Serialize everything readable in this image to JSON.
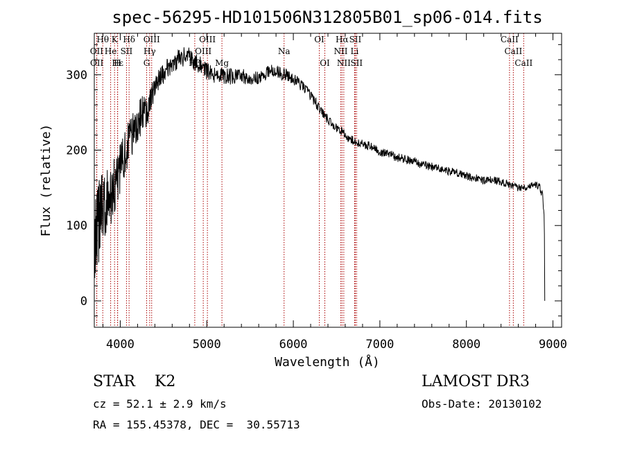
{
  "chart_data": {
    "type": "line",
    "title": "spec-56295-HD101506N312805B01_sp06-014.fits",
    "xlabel": "Wavelength (Å)",
    "ylabel": "Flux (relative)",
    "xlim": [
      3700,
      9100
    ],
    "ylim": [
      -35,
      355
    ],
    "xticks": [
      4000,
      5000,
      6000,
      7000,
      8000,
      9000
    ],
    "yticks": [
      0,
      100,
      200,
      300
    ],
    "minor_xtick_step": 200,
    "minor_ytick_step": 20,
    "series": [
      {
        "name": "flux",
        "anchors": {
          "x": [
            3700,
            3720,
            3760,
            3800,
            3850,
            3900,
            3950,
            4000,
            4050,
            4100,
            4150,
            4200,
            4250,
            4300,
            4350,
            4400,
            4450,
            4500,
            4550,
            4600,
            4650,
            4700,
            4750,
            4800,
            4850,
            4900,
            4950,
            5000,
            5050,
            5100,
            5150,
            5200,
            5250,
            5300,
            5350,
            5400,
            5450,
            5500,
            5550,
            5600,
            5650,
            5700,
            5750,
            5800,
            5850,
            5900,
            5950,
            6000,
            6050,
            6100,
            6150,
            6200,
            6250,
            6300,
            6350,
            6400,
            6450,
            6500,
            6550,
            6600,
            6650,
            6700,
            6750,
            6800,
            6900,
            7000,
            7100,
            7200,
            7300,
            7400,
            7500,
            7600,
            7700,
            7800,
            7900,
            8000,
            8100,
            8200,
            8300,
            8400,
            8500,
            8600,
            8700,
            8800,
            8850,
            8880,
            8900,
            8905
          ],
          "y": [
            60,
            90,
            110,
            120,
            130,
            140,
            160,
            175,
            195,
            210,
            225,
            240,
            245,
            250,
            265,
            285,
            295,
            300,
            310,
            315,
            318,
            322,
            325,
            325,
            318,
            315,
            310,
            305,
            300,
            300,
            300,
            298,
            298,
            298,
            298,
            298,
            297,
            296,
            295,
            295,
            298,
            305,
            305,
            305,
            302,
            300,
            298,
            295,
            290,
            285,
            280,
            272,
            265,
            255,
            248,
            240,
            235,
            230,
            225,
            220,
            215,
            212,
            210,
            208,
            205,
            198,
            195,
            190,
            188,
            185,
            180,
            178,
            175,
            172,
            170,
            165,
            163,
            160,
            160,
            158,
            155,
            150,
            152,
            155,
            150,
            140,
            110,
            0
          ]
        },
        "noise_profile": {
          "x": [
            3700,
            3950,
            4300,
            4400,
            5000,
            6500,
            9000
          ],
          "amplitude": [
            60,
            35,
            25,
            14,
            12,
            6,
            5
          ]
        }
      }
    ],
    "line_markers": [
      {
        "label": "Hθ",
        "wavelength": 3798,
        "row": 1
      },
      {
        "label": "K",
        "wavelength": 3934,
        "row": 1
      },
      {
        "label": "Hδ",
        "wavelength": 4102,
        "row": 1
      },
      {
        "label": "OIII",
        "wavelength": 4363,
        "row": 1
      },
      {
        "label": "OIII",
        "wavelength": 5007,
        "row": 1
      },
      {
        "label": "OI",
        "wavelength": 6300,
        "row": 1
      },
      {
        "label": "Hα",
        "wavelength": 6563,
        "row": 1
      },
      {
        "label": "SII",
        "wavelength": 6716,
        "row": 1
      },
      {
        "label": "CaII",
        "wavelength": 8498,
        "row": 1
      },
      {
        "label": "OII",
        "wavelength": 3727,
        "row": 2
      },
      {
        "label": "He",
        "wavelength": 3889,
        "row": 2
      },
      {
        "label": "SII",
        "wavelength": 4072,
        "row": 2
      },
      {
        "label": "Hγ",
        "wavelength": 4340,
        "row": 2
      },
      {
        "label": "OIII",
        "wavelength": 4959,
        "row": 2
      },
      {
        "label": "Na",
        "wavelength": 5893,
        "row": 2
      },
      {
        "label": "NII",
        "wavelength": 6548,
        "row": 2
      },
      {
        "label": "Li",
        "wavelength": 6708,
        "row": 2
      },
      {
        "label": "CaII",
        "wavelength": 8542,
        "row": 2
      },
      {
        "label": "OII",
        "wavelength": 3729,
        "row": 3
      },
      {
        "label": "Hε",
        "wavelength": 3970,
        "row": 3
      },
      {
        "label": "H",
        "wavelength": 3968,
        "row": 3
      },
      {
        "label": "G",
        "wavelength": 4305,
        "row": 3
      },
      {
        "label": "Hβ",
        "wavelength": 4861,
        "row": 3
      },
      {
        "label": "Mg",
        "wavelength": 5175,
        "row": 3
      },
      {
        "label": "OI",
        "wavelength": 6364,
        "row": 3
      },
      {
        "label": "NII",
        "wavelength": 6583,
        "row": 3
      },
      {
        "label": "SII",
        "wavelength": 6731,
        "row": 3
      },
      {
        "label": "CaII",
        "wavelength": 8662,
        "row": 3
      }
    ]
  },
  "info": {
    "class_line": "STAR    K2",
    "survey": "LAMOST DR3",
    "cz_line": "cz = 52.1 ± 2.9 km/s",
    "obs_line": "Obs-Date: 20130102",
    "coord_line": "RA = 155.45378, DEC =  30.55713"
  },
  "colors": {
    "line": "#000000",
    "marker": "#aa0000",
    "axes": "#000000",
    "background": "#ffffff"
  }
}
